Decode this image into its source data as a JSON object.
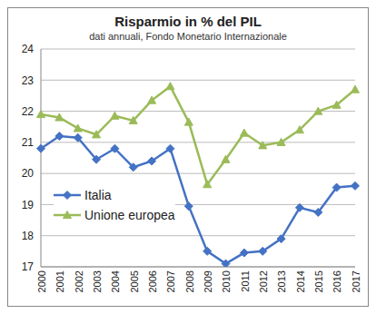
{
  "chart_data": {
    "type": "line",
    "title": "Risparmio in % del PIL",
    "subtitle": "dati annuali, Fondo Monetario Internazionale",
    "categories": [
      "2000",
      "2001",
      "2002",
      "2003",
      "2004",
      "2005",
      "2006",
      "2007",
      "2008",
      "2009",
      "2010",
      "2011",
      "2012",
      "2013",
      "2014",
      "2015",
      "2016",
      "2017"
    ],
    "series": [
      {
        "name": "Italia",
        "color": "#4472c4",
        "marker": "diamond",
        "values": [
          20.8,
          21.2,
          21.15,
          20.45,
          20.8,
          20.2,
          20.4,
          20.8,
          18.95,
          17.5,
          17.1,
          17.45,
          17.5,
          17.9,
          18.9,
          18.75,
          19.55,
          19.6
        ]
      },
      {
        "name": "Unione europea",
        "color": "#9bbb59",
        "marker": "triangle",
        "values": [
          21.9,
          21.8,
          21.45,
          21.25,
          21.85,
          21.7,
          22.35,
          22.8,
          21.65,
          19.65,
          20.45,
          21.3,
          20.9,
          21.0,
          21.4,
          22.0,
          22.2,
          22.7
        ]
      }
    ],
    "ylim": [
      17,
      24
    ],
    "yticks": [
      17,
      18,
      19,
      20,
      21,
      22,
      23,
      24
    ],
    "grid": true,
    "legend": "left"
  }
}
